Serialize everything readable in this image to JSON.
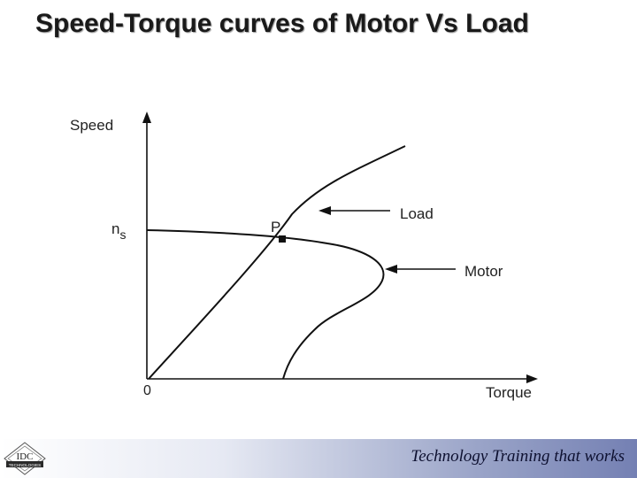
{
  "slide": {
    "title": "Speed-Torque curves of Motor Vs Load"
  },
  "diagram": {
    "y_axis_label": "Speed",
    "x_axis_label": "Torque",
    "origin_label": "0",
    "ns_label_main": "n",
    "ns_label_sub": "s",
    "point_label": "P",
    "load_label": "Load",
    "motor_label": "Motor"
  },
  "footer": {
    "tagline": "Technology Training that works",
    "logo_text": "IDC",
    "logo_subtext": "TECHNOLOGIES"
  },
  "colors": {
    "footer_gradient_end": "#7480b3",
    "curve": "#111111"
  }
}
